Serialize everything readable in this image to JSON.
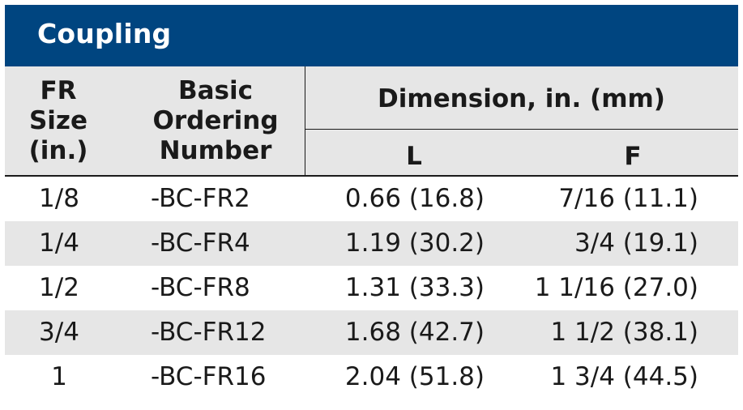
{
  "title": "Coupling",
  "columns": {
    "fr_size": [
      "FR",
      "Size",
      "(in.)"
    ],
    "basic_ordering": [
      "Basic",
      "Ordering",
      "Number"
    ],
    "dimension": "Dimension, in. (mm)",
    "l": "L",
    "f": "F"
  },
  "rows": [
    {
      "size": "1/8",
      "number": "-BC-FR2",
      "l": "0.66 (16.8)",
      "f": "7/16 (11.1)"
    },
    {
      "size": "1/4",
      "number": "-BC-FR4",
      "l": "1.19 (30.2)",
      "f": "3/4 (19.1)"
    },
    {
      "size": "1/2",
      "number": "-BC-FR8",
      "l": "1.31 (33.3)",
      "f": "1 1/16 (27.0)"
    },
    {
      "size": "3/4",
      "number": "-BC-FR12",
      "l": "1.68 (42.7)",
      "f": "1 1/2 (38.1)"
    },
    {
      "size": "1",
      "number": "-BC-FR16",
      "l": "2.04 (51.8)",
      "f": "1 3/4 (44.5)"
    }
  ],
  "colors": {
    "banner": "#004580",
    "header_bg": "#e6e6e6",
    "stripe": "#e6e6e6"
  }
}
